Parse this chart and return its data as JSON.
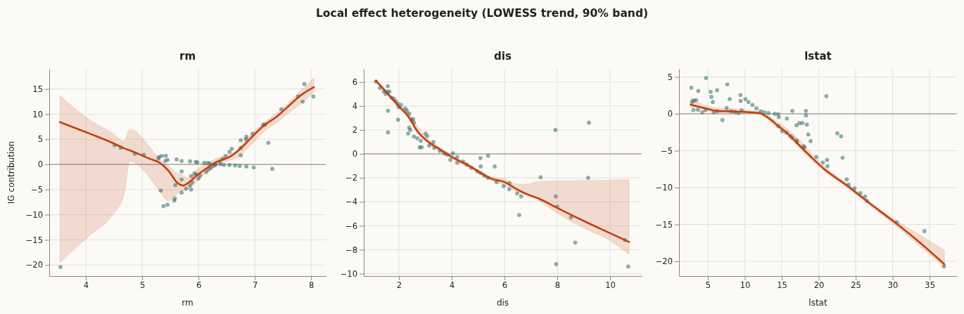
{
  "chart_data": [
    {
      "type": "scatter",
      "title": "rm",
      "xlabel": "rm",
      "ylabel": "IG contribution",
      "annotations": [
        "Local effect heterogeneity  (LOWESS trend, 90% band)"
      ],
      "grid": true,
      "xlim": [
        3.35,
        8.26
      ],
      "ylim": [
        -22.2,
        19
      ],
      "xticks": [
        4,
        5,
        6,
        7,
        8
      ],
      "yticks": [
        {
          "value": -20,
          "label": "−20"
        },
        {
          "value": -15,
          "label": "−15"
        },
        {
          "value": -10,
          "label": "−10"
        },
        {
          "value": -5,
          "label": "−5"
        },
        0,
        5,
        10,
        15
      ],
      "ref_lines": [
        {
          "axis": "y",
          "value": 0,
          "color": "#8a877f"
        }
      ],
      "series": [
        {
          "marker": "circle",
          "color": "#2e6e6e",
          "x": [
            3.55,
            4.51,
            4.62,
            4.87,
            5.03,
            5.3,
            5.35,
            5.42,
            5.29,
            5.41,
            5.45,
            5.61,
            5.7,
            5.85,
            5.95,
            5.98,
            6.1,
            6.16,
            6.2,
            6.3,
            6.39,
            6.45,
            6.55,
            6.65,
            6.73,
            6.85,
            6.98,
            7.31,
            7.24,
            7.47,
            7.77,
            7.85,
            7.88,
            8.04,
            7.15,
            7.18,
            6.96,
            6.85,
            6.84,
            6.75,
            6.75,
            6.75,
            6.59,
            6.55,
            6.48,
            6.43,
            6.38,
            6.3,
            6.26,
            6.22,
            6.18,
            6.14,
            6.03,
            6.0,
            5.96,
            5.93,
            5.87,
            5.89,
            5.85,
            5.87,
            5.78,
            5.7,
            5.7,
            5.7,
            5.59,
            5.33,
            5.58,
            5.57,
            5.38,
            5.45
          ],
          "values": [
            -20.4,
            3.8,
            3.3,
            2.1,
            1.9,
            1.5,
            1.7,
            1.7,
            1.2,
            0.7,
            0.9,
            1.0,
            0.7,
            0.6,
            0.5,
            0.4,
            0.3,
            0.3,
            0.2,
            0.05,
            0.05,
            -0.1,
            -0.1,
            -0.2,
            -0.3,
            -0.4,
            -0.6,
            -0.9,
            4.3,
            11.0,
            13.5,
            12.5,
            16.0,
            13.5,
            7.9,
            7.9,
            6.1,
            5.5,
            5.0,
            4.8,
            3.3,
            1.8,
            3.1,
            2.5,
            1.7,
            1.1,
            0.6,
            -0.1,
            -0.3,
            -0.7,
            -1.0,
            -1.5,
            -2.2,
            -2.8,
            -2.0,
            -1.8,
            -2.3,
            -3.6,
            -4.2,
            -5.0,
            -4.8,
            -5.6,
            -3.0,
            -1.4,
            -4.1,
            -5.2,
            -6.8,
            -7.2,
            -8.3,
            -8.0
          ]
        },
        {
          "type": "line",
          "line_style": "solid",
          "color": "#c0410f",
          "x": [
            3.54,
            4.05,
            4.47,
            4.68,
            4.78,
            5.14,
            5.3,
            5.47,
            5.62,
            5.72,
            5.8,
            5.97,
            6.14,
            6.3,
            6.55,
            6.68,
            6.85,
            6.97,
            7.18,
            7.39,
            7.6,
            7.81,
            8.05
          ],
          "values": [
            8.4,
            6.2,
            4.3,
            3.2,
            2.8,
            1.1,
            0.4,
            -1.3,
            -3.6,
            -4.2,
            -3.8,
            -2.2,
            -0.8,
            0.4,
            1.5,
            2.5,
            4.3,
            5.7,
            7.9,
            9.5,
            11.6,
            13.7,
            15.4
          ],
          "upper": [
            13.7,
            9.0,
            6.2,
            4.6,
            7.0,
            3.4,
            1.1,
            -0.3,
            -1.7,
            -2.2,
            -2.7,
            -1.0,
            0.15,
            1.1,
            2.0,
            2.9,
            5.0,
            6.4,
            8.5,
            10.2,
            12.3,
            14.6,
            17.2
          ],
          "lower": [
            -19.5,
            -14.3,
            -10.1,
            -5.9,
            0.6,
            -2.7,
            -5.2,
            -7.3,
            -5.9,
            -5.2,
            -5.0,
            -3.4,
            -1.7,
            -0.3,
            0.8,
            1.3,
            2.9,
            4.3,
            6.7,
            8.3,
            10.2,
            12.0,
            14.4
          ]
        }
      ]
    },
    {
      "type": "scatter",
      "title": "dis",
      "xlabel": "dis",
      "grid": true,
      "xlim": [
        0.67,
        11.2
      ],
      "ylim": [
        -10.2,
        7.1
      ],
      "xticks": [
        2,
        4,
        6,
        8,
        10
      ],
      "yticks": [
        {
          "value": -10,
          "label": "−10"
        },
        {
          "value": -8,
          "label": "−8"
        },
        {
          "value": -6,
          "label": "−6"
        },
        {
          "value": -4,
          "label": "−4"
        },
        {
          "value": -2,
          "label": "−2"
        },
        0,
        2,
        4,
        6
      ],
      "ref_lines": [
        {
          "axis": "y",
          "value": 0,
          "color": "#8a877f"
        }
      ],
      "series": [
        {
          "marker": "circle",
          "color": "#2e6e6e",
          "x": [
            1.13,
            1.28,
            1.43,
            1.5,
            1.56,
            1.64,
            1.58,
            1.72,
            1.81,
            1.88,
            1.95,
            2.08,
            1.99,
            2.24,
            2.3,
            2.39,
            2.48,
            2.54,
            2.57,
            1.59,
            1.59,
            1.97,
            2.39,
            2.43,
            2.35,
            2.57,
            2.7,
            2.83,
            2.79,
            2.86,
            3.01,
            3.07,
            3.15,
            3.31,
            3.34,
            3.55,
            3.72,
            3.81,
            3.95,
            4.05,
            4.21,
            4.21,
            4.43,
            4.57,
            4.74,
            4.97,
            5.1,
            5.23,
            5.37,
            5.09,
            5.1,
            5.38,
            5.63,
            5.7,
            5.97,
            6.19,
            6.18,
            6.48,
            6.63,
            6.56,
            7.37,
            7.93,
            7.94,
            8.0,
            7.96,
            8.52,
            8.68,
            9.17,
            9.2,
            10.56,
            10.69
          ],
          "values": [
            6.04,
            5.5,
            5.2,
            5.0,
            5.2,
            5.2,
            5.65,
            4.7,
            4.6,
            4.4,
            4.2,
            4.1,
            3.9,
            3.8,
            3.6,
            3.35,
            2.85,
            2.9,
            2.6,
            3.6,
            1.8,
            2.85,
            2.2,
            2.0,
            1.7,
            1.45,
            1.3,
            1.1,
            0.55,
            0.55,
            1.7,
            1.5,
            0.7,
            1.0,
            0.5,
            0.25,
            0.05,
            -0.05,
            -0.5,
            0.05,
            -0.25,
            -0.75,
            -0.65,
            -0.9,
            -1.15,
            -1.45,
            -1.6,
            -1.8,
            -2.0,
            -0.35,
            -1.05,
            -0.15,
            -1.05,
            -2.35,
            -2.7,
            -2.45,
            -2.95,
            -3.3,
            -3.55,
            -5.1,
            -1.95,
            2.0,
            -3.55,
            -4.4,
            -9.2,
            -5.3,
            -7.4,
            -2.0,
            2.6,
            -7.2,
            -9.4
          ]
        },
        {
          "type": "line",
          "line_style": "solid",
          "color": "#c0410f",
          "x": [
            1.13,
            1.55,
            1.99,
            2.35,
            2.7,
            3.06,
            3.5,
            4.0,
            4.66,
            5.54,
            6.0,
            6.43,
            6.79,
            7.32,
            8.03,
            9.1,
            9.98,
            10.72
          ],
          "values": [
            6.1,
            5.1,
            4.0,
            3.15,
            1.9,
            1.1,
            0.45,
            -0.25,
            -1.0,
            -2.1,
            -2.35,
            -2.9,
            -3.3,
            -3.75,
            -4.55,
            -5.7,
            -6.6,
            -7.35
          ],
          "upper": [
            6.25,
            5.25,
            4.15,
            3.5,
            2.3,
            1.35,
            0.6,
            -0.1,
            -0.85,
            -1.95,
            -2.1,
            -2.5,
            -2.55,
            -2.3,
            -2.25,
            -2.22,
            -2.2,
            -2.15
          ],
          "lower": [
            5.95,
            4.95,
            3.85,
            3.0,
            1.75,
            0.95,
            0.3,
            -0.4,
            -1.15,
            -2.25,
            -2.6,
            -3.1,
            -3.45,
            -3.95,
            -5.0,
            -6.3,
            -7.2,
            -8.4
          ]
        }
      ]
    },
    {
      "type": "scatter",
      "title": "lstat",
      "xlabel": "lstat",
      "grid": true,
      "xlim": [
        1.1,
        38.7
      ],
      "ylim": [
        -22,
        6.1
      ],
      "xticks": [
        5,
        10,
        15,
        20,
        25,
        30,
        35
      ],
      "yticks": [
        {
          "value": -20,
          "label": "−20"
        },
        {
          "value": -15,
          "label": "−15"
        },
        {
          "value": -10,
          "label": "−10"
        },
        {
          "value": -5,
          "label": "−5"
        },
        0,
        5
      ],
      "ref_lines": [
        {
          "axis": "y",
          "value": 0,
          "color": "#8a877f"
        }
      ],
      "series": [
        {
          "marker": "circle",
          "color": "#2e6e6e",
          "x": [
            2.78,
            2.87,
            3.1,
            3.41,
            3.06,
            3.67,
            3.7,
            4.24,
            4.68,
            4.75,
            5.38,
            5.48,
            5.67,
            6.24,
            5.79,
            6.27,
            6.97,
            7.54,
            7.63,
            7.95,
            8.17,
            8.65,
            9.13,
            9.44,
            9.41,
            9.57,
            10.08,
            10.49,
            11.03,
            11.57,
            12.14,
            12.62,
            13.19,
            14.05,
            14.52,
            14.59,
            14.52,
            15.06,
            15.7,
            16.43,
            17.0,
            17.38,
            17.79,
            15.63,
            16.17,
            16.43,
            17.0,
            17.06,
            17.95,
            18.08,
            18.27,
            18.27,
            18.4,
            18.59,
            18.9,
            19.67,
            20.56,
            21.03,
            21.13,
            21.19,
            22.52,
            23.03,
            23.22,
            23.79,
            24.05,
            24.84,
            25.63,
            26.27,
            26.52,
            30.56,
            34.3,
            36.94
          ],
          "values": [
            3.55,
            1.6,
            1.8,
            1.85,
            0.5,
            0.55,
            3.1,
            0.2,
            0.5,
            4.85,
            3.0,
            2.3,
            1.6,
            3.2,
            0.2,
            0.35,
            -0.85,
            0.8,
            4.0,
            2.0,
            0.35,
            0.25,
            0.1,
            1.75,
            2.55,
            0.5,
            2.0,
            1.6,
            1.2,
            0.75,
            0.35,
            0.2,
            0.1,
            0,
            -0.05,
            -0.45,
            -1.65,
            -2.35,
            -0.65,
            0.4,
            -1.55,
            -1.25,
            -1.25,
            -2.55,
            -3.0,
            -3.25,
            -3.6,
            -3.8,
            -4.4,
            -4.55,
            0.4,
            -0.2,
            -1.45,
            -2.8,
            -3.7,
            -5.85,
            -6.6,
            2.4,
            -6.25,
            -7.1,
            -2.65,
            -3.05,
            -5.95,
            -8.9,
            -9.6,
            -10.1,
            -10.75,
            -11.2,
            -11.8,
            -14.7,
            -15.9,
            -20.7
          ]
        },
        {
          "type": "line",
          "line_style": "solid",
          "color": "#c0410f",
          "x": [
            2.68,
            4.68,
            6.27,
            7.86,
            10.08,
            11.98,
            13.25,
            14.52,
            15.79,
            17.06,
            18.97,
            20.87,
            23.73,
            26.9,
            30.08,
            33.25,
            37.0
          ],
          "values": [
            1.25,
            0.75,
            0.4,
            0.35,
            0.25,
            0.1,
            -0.6,
            -1.65,
            -2.65,
            -3.95,
            -5.85,
            -7.6,
            -9.65,
            -12.15,
            -14.55,
            -17.1,
            -20.4
          ],
          "upper": [
            2.2,
            1.1,
            0.8,
            0.75,
            0.5,
            0.25,
            -0.3,
            -1.2,
            -2.1,
            -3.2,
            -5.3,
            -7.2,
            -9.4,
            -11.9,
            -14.2,
            -16.2,
            -18.5
          ],
          "lower": [
            0.9,
            0.5,
            0.2,
            0.15,
            0.1,
            -0.05,
            -0.9,
            -2.0,
            -3.0,
            -4.3,
            -6.2,
            -7.9,
            -9.9,
            -12.4,
            -14.9,
            -17.6,
            -20.8
          ]
        }
      ]
    }
  ]
}
